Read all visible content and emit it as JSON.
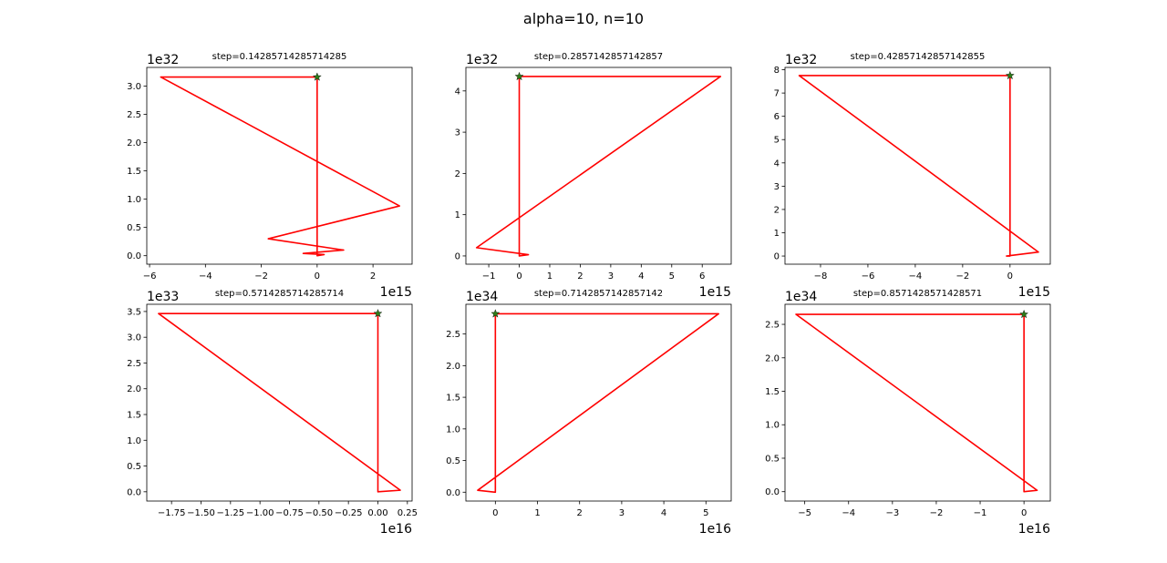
{
  "figure": {
    "title": "alpha=10, n=10"
  },
  "chart_data": [
    {
      "type": "line",
      "title": "step=0.14285714285714285",
      "x_offset_label": "1e15",
      "y_offset_label": "1e32",
      "xlim": [
        -6.1,
        3.4
      ],
      "ylim": [
        -0.15,
        3.33
      ],
      "xticks": [
        -6,
        -4,
        -2,
        0,
        2
      ],
      "xtick_labels": [
        "−6",
        "−4",
        "−2",
        "0",
        "2"
      ],
      "yticks": [
        0,
        0.5,
        1.0,
        1.5,
        2.0,
        2.5,
        3.0
      ],
      "ytick_labels": [
        "0.0",
        "0.5",
        "1.0",
        "1.5",
        "2.0",
        "2.5",
        "3.0"
      ],
      "series": [
        {
          "color": "#ff0000",
          "x": [
            0,
            0,
            0.25,
            -0.5,
            0.95,
            -1.75,
            2.95,
            -5.6,
            0
          ],
          "y": [
            3.16,
            0.0,
            0.02,
            0.04,
            0.1,
            0.3,
            0.88,
            3.16,
            3.16
          ]
        }
      ],
      "marker": {
        "x": 0,
        "y": 3.16,
        "symbol": "star",
        "color": "#2e7d1a"
      }
    },
    {
      "type": "line",
      "title": "step=0.2857142857142857",
      "x_offset_label": "1e15",
      "y_offset_label": "1e32",
      "xlim": [
        -1.75,
        6.95
      ],
      "ylim": [
        -0.2,
        4.57
      ],
      "xticks": [
        -1,
        0,
        1,
        2,
        3,
        4,
        5,
        6
      ],
      "xtick_labels": [
        "−1",
        "0",
        "1",
        "2",
        "3",
        "4",
        "5",
        "6"
      ],
      "yticks": [
        0,
        1,
        2,
        3,
        4
      ],
      "ytick_labels": [
        "0",
        "1",
        "2",
        "3",
        "4"
      ],
      "series": [
        {
          "color": "#ff0000",
          "x": [
            0,
            0,
            0.3,
            -1.4,
            6.6,
            0
          ],
          "y": [
            4.35,
            0.0,
            0.03,
            0.2,
            4.35,
            4.35
          ]
        }
      ],
      "marker": {
        "x": 0,
        "y": 4.35,
        "symbol": "star",
        "color": "#2e7d1a"
      }
    },
    {
      "type": "line",
      "title": "step=0.42857142857142855",
      "x_offset_label": "1e15",
      "y_offset_label": "1e32",
      "xlim": [
        -9.5,
        1.7
      ],
      "ylim": [
        -0.35,
        8.1
      ],
      "xticks": [
        -8,
        -6,
        -4,
        -2,
        0
      ],
      "xtick_labels": [
        "−8",
        "−6",
        "−4",
        "−2",
        "0"
      ],
      "yticks": [
        0,
        1,
        2,
        3,
        4,
        5,
        6,
        7,
        8
      ],
      "ytick_labels": [
        "0",
        "1",
        "2",
        "3",
        "4",
        "5",
        "6",
        "7",
        "8"
      ],
      "series": [
        {
          "color": "#ff0000",
          "x": [
            0,
            0,
            -0.15,
            1.2,
            -8.9,
            0
          ],
          "y": [
            7.75,
            0.0,
            0.0,
            0.17,
            7.75,
            7.75
          ]
        }
      ],
      "marker": {
        "x": 0,
        "y": 7.75,
        "symbol": "star",
        "color": "#2e7d1a"
      }
    },
    {
      "type": "line",
      "title": "step=0.5714285714285714",
      "x_offset_label": "1e16",
      "y_offset_label": "1e33",
      "xlim": [
        -1.96,
        0.29
      ],
      "ylim": [
        -0.18,
        3.64
      ],
      "xticks": [
        -1.75,
        -1.5,
        -1.25,
        -1.0,
        -0.75,
        -0.5,
        -0.25,
        0.0,
        0.25
      ],
      "xtick_labels": [
        "−1.75",
        "−1.50",
        "−1.25",
        "−1.00",
        "−0.75",
        "−0.50",
        "−0.25",
        "0.00",
        "0.25"
      ],
      "yticks": [
        0,
        0.5,
        1.0,
        1.5,
        2.0,
        2.5,
        3.0,
        3.5
      ],
      "ytick_labels": [
        "0.0",
        "0.5",
        "1.0",
        "1.5",
        "2.0",
        "2.5",
        "3.0",
        "3.5"
      ],
      "series": [
        {
          "color": "#ff0000",
          "x": [
            0,
            0,
            0.19,
            -1.86,
            0
          ],
          "y": [
            3.46,
            0.0,
            0.03,
            3.46,
            3.46
          ]
        }
      ],
      "marker": {
        "x": 0,
        "y": 3.46,
        "symbol": "star",
        "color": "#2e7d1a"
      }
    },
    {
      "type": "line",
      "title": "step=0.7142857142857142",
      "x_offset_label": "1e16",
      "y_offset_label": "1e34",
      "xlim": [
        -0.7,
        5.6
      ],
      "ylim": [
        -0.14,
        2.97
      ],
      "xticks": [
        0,
        1,
        2,
        3,
        4,
        5
      ],
      "xtick_labels": [
        "0",
        "1",
        "2",
        "3",
        "4",
        "5"
      ],
      "yticks": [
        0,
        0.5,
        1.0,
        1.5,
        2.0,
        2.5
      ],
      "ytick_labels": [
        "0.0",
        "0.5",
        "1.0",
        "1.5",
        "2.0",
        "2.5"
      ],
      "series": [
        {
          "color": "#ff0000",
          "x": [
            0,
            0,
            -0.42,
            5.3,
            0
          ],
          "y": [
            2.82,
            0.0,
            0.03,
            2.82,
            2.82
          ]
        }
      ],
      "marker": {
        "x": 0,
        "y": 2.82,
        "symbol": "star",
        "color": "#2e7d1a"
      }
    },
    {
      "type": "line",
      "title": "step=0.8571428571428571",
      "x_offset_label": "1e16",
      "y_offset_label": "1e34",
      "xlim": [
        -5.45,
        0.6
      ],
      "ylim": [
        -0.14,
        2.8
      ],
      "xticks": [
        -5,
        -4,
        -3,
        -2,
        -1,
        0
      ],
      "xtick_labels": [
        "−5",
        "−4",
        "−3",
        "−2",
        "−1",
        "0"
      ],
      "yticks": [
        0,
        0.5,
        1.0,
        1.5,
        2.0,
        2.5
      ],
      "ytick_labels": [
        "0.0",
        "0.5",
        "1.0",
        "1.5",
        "2.0",
        "2.5"
      ],
      "series": [
        {
          "color": "#ff0000",
          "x": [
            0,
            0,
            0.3,
            -5.2,
            0
          ],
          "y": [
            2.65,
            0.0,
            0.02,
            2.65,
            2.65
          ]
        }
      ],
      "marker": {
        "x": 0,
        "y": 2.65,
        "symbol": "star",
        "color": "#2e7d1a"
      }
    }
  ]
}
